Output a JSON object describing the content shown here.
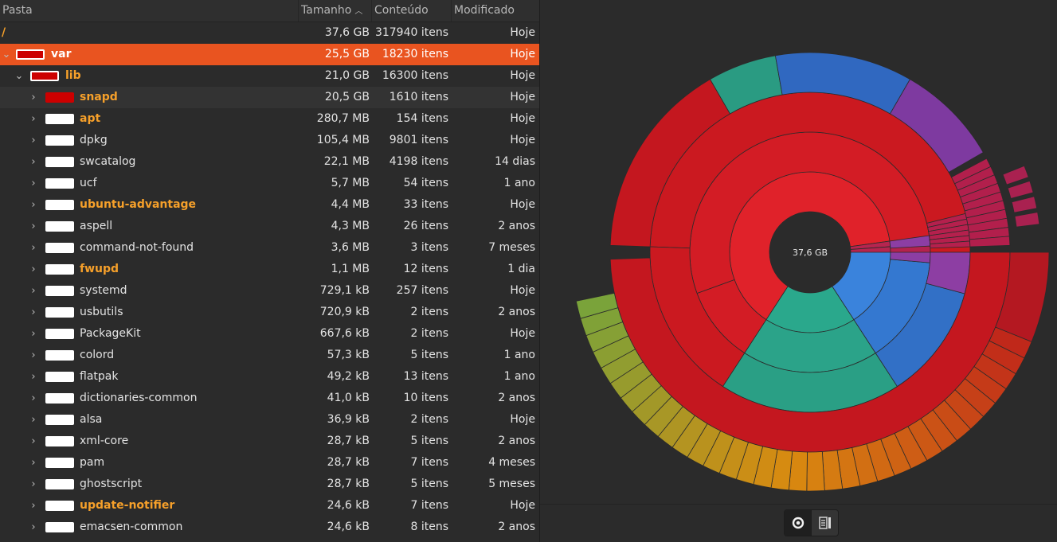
{
  "header": {
    "col_folder": "Pasta",
    "col_size": "Tamanho",
    "col_contents": "Conteúdo",
    "col_modified": "Modificado",
    "sorted_by": "Tamanho",
    "sort_icon": "chevron-up-icon"
  },
  "rows": [
    {
      "name": "/",
      "size": "37,6 GB",
      "contents": "317940 itens",
      "modified": "Hoje"
    },
    {
      "name": "var",
      "size": "25,5 GB",
      "contents": "18230 itens",
      "modified": "Hoje"
    },
    {
      "name": "lib",
      "size": "21,0 GB",
      "contents": "16300 itens",
      "modified": "Hoje"
    },
    {
      "name": "snapd",
      "size": "20,5 GB",
      "contents": "1610 itens",
      "modified": "Hoje"
    },
    {
      "name": "apt",
      "size": "280,7 MB",
      "contents": "154 itens",
      "modified": "Hoje"
    },
    {
      "name": "dpkg",
      "size": "105,4 MB",
      "contents": "9801 itens",
      "modified": "Hoje"
    },
    {
      "name": "swcatalog",
      "size": "22,1 MB",
      "contents": "4198 itens",
      "modified": "14 dias"
    },
    {
      "name": "ucf",
      "size": "5,7 MB",
      "contents": "54 itens",
      "modified": "1 ano"
    },
    {
      "name": "ubuntu-advantage",
      "size": "4,4 MB",
      "contents": "33 itens",
      "modified": "Hoje"
    },
    {
      "name": "aspell",
      "size": "4,3 MB",
      "contents": "26 itens",
      "modified": "2 anos"
    },
    {
      "name": "command-not-found",
      "size": "3,6 MB",
      "contents": "3 itens",
      "modified": "7 meses"
    },
    {
      "name": "fwupd",
      "size": "1,1 MB",
      "contents": "12 itens",
      "modified": "1 dia"
    },
    {
      "name": "systemd",
      "size": "729,1 kB",
      "contents": "257 itens",
      "modified": "Hoje"
    },
    {
      "name": "usbutils",
      "size": "720,9 kB",
      "contents": "2 itens",
      "modified": "2 anos"
    },
    {
      "name": "PackageKit",
      "size": "667,6 kB",
      "contents": "2 itens",
      "modified": "Hoje"
    },
    {
      "name": "colord",
      "size": "57,3 kB",
      "contents": "5 itens",
      "modified": "1 ano"
    },
    {
      "name": "flatpak",
      "size": "49,2 kB",
      "contents": "13 itens",
      "modified": "1 ano"
    },
    {
      "name": "dictionaries-common",
      "size": "41,0 kB",
      "contents": "10 itens",
      "modified": "2 anos"
    },
    {
      "name": "alsa",
      "size": "36,9 kB",
      "contents": "2 itens",
      "modified": "Hoje"
    },
    {
      "name": "xml-core",
      "size": "28,7 kB",
      "contents": "5 itens",
      "modified": "2 anos"
    },
    {
      "name": "pam",
      "size": "28,7 kB",
      "contents": "7 itens",
      "modified": "4 meses"
    },
    {
      "name": "ghostscript",
      "size": "28,7 kB",
      "contents": "5 itens",
      "modified": "5 meses"
    },
    {
      "name": "update-notifier",
      "size": "24,6 kB",
      "contents": "7 itens",
      "modified": "Hoje"
    },
    {
      "name": "emacsen-common",
      "size": "24,6 kB",
      "contents": "8 itens",
      "modified": "2 anos"
    }
  ],
  "colors": {
    "selection": "#e95420",
    "highlight_name": "#f6a02a",
    "usage_bar_red": "#cc0000",
    "ring_red": "#d0161e",
    "ring_green": "#2a9d80",
    "ring_blue": "#3378d1",
    "ring_purple": "#8a3fa3",
    "ring_magenta": "#b51f4e"
  },
  "chart": {
    "center_label": "37,6 GB"
  },
  "view_switcher": {
    "ring_chart_icon": "ring-chart-icon",
    "treemap_chart_icon": "treemap-chart-icon"
  }
}
